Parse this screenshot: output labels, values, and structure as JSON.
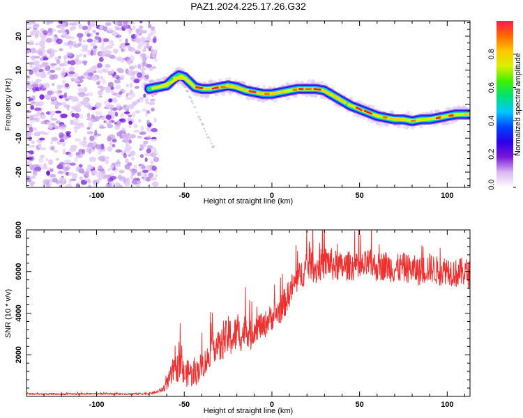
{
  "chart_data": [
    {
      "type": "heatmap",
      "title": "PAZ1.2024.225.17.26.G32",
      "xlabel": "Height of straight line (km)",
      "ylabel": "Frequency (Hz)",
      "xlim": [
        -140,
        113
      ],
      "ylim": [
        -24.5,
        24.5
      ],
      "xticks": [
        "-100",
        "-50",
        "0",
        "50",
        "100"
      ],
      "yticks": [
        "-20",
        "-10",
        "0",
        "10",
        "20"
      ],
      "noise_region_x": [
        -140,
        -68
      ],
      "ridge": {
        "x": [
          -70,
          -65,
          -60,
          -56,
          -53,
          -50,
          -47,
          -44,
          -40,
          -35,
          -30,
          -25,
          -20,
          -15,
          -10,
          -5,
          0,
          5,
          10,
          15,
          20,
          25,
          30,
          35,
          40,
          45,
          50,
          55,
          60,
          65,
          70,
          75,
          80,
          85,
          90,
          95,
          100,
          105,
          110,
          113
        ],
        "y": [
          4.5,
          5,
          5.5,
          7.5,
          8.5,
          8,
          6.5,
          5,
          4.5,
          4.5,
          5,
          5.5,
          5,
          4,
          3.5,
          3,
          3,
          3.5,
          4,
          4.5,
          4.5,
          4.5,
          4,
          2.5,
          1,
          -0.5,
          -1.5,
          -2.5,
          -3.5,
          -4,
          -4.5,
          -4.5,
          -5,
          -4.5,
          -4.5,
          -4,
          -3.5,
          -3,
          -3,
          -3
        ]
      },
      "faint_branch": {
        "x": [
          -52,
          -47,
          -43,
          -38,
          -33
        ],
        "y": [
          7,
          2.5,
          -2,
          -8,
          -13
        ]
      },
      "colorbar": {
        "label": "Normalized spectral amplitude",
        "range": [
          0.0,
          1.0
        ],
        "ticks": [
          "0.0",
          "0.2",
          "0.4",
          "0.6",
          "0.8"
        ],
        "colors": [
          "#ffffff",
          "#d9b8f0",
          "#7a18d8",
          "#2a00e8",
          "#0044ff",
          "#00c8ff",
          "#00e07a",
          "#3df000",
          "#d8f000",
          "#ffc800",
          "#ff6a00",
          "#ff1a50"
        ]
      }
    },
    {
      "type": "line",
      "xlabel": "Height of straight line (km)",
      "ylabel": "SNR (10 * v/v)",
      "xlim": [
        -140,
        113
      ],
      "ylim": [
        0,
        8000
      ],
      "xticks": [
        "-100",
        "-50",
        "0",
        "50",
        "100"
      ],
      "yticks": [
        "2000",
        "4000",
        "6000",
        "8000"
      ],
      "series": [
        {
          "color": "#ee3030",
          "x": [
            -140,
            -120,
            -100,
            -80,
            -70,
            -66,
            -62,
            -60,
            -58,
            -55,
            -52,
            -50,
            -47,
            -45,
            -42,
            -40,
            -37,
            -35,
            -32,
            -30,
            -27,
            -25,
            -22,
            -20,
            -17,
            -15,
            -12,
            -10,
            -7,
            -5,
            -2,
            0,
            3,
            5,
            8,
            10,
            12,
            15,
            17,
            20,
            22,
            25,
            27,
            30,
            32,
            35,
            40,
            45,
            50,
            55,
            60,
            65,
            70,
            75,
            80,
            85,
            90,
            95,
            100,
            105,
            110,
            113
          ],
          "y": [
            120,
            110,
            130,
            120,
            140,
            200,
            350,
            600,
            900,
            1300,
            1500,
            1000,
            1200,
            900,
            1300,
            1500,
            1700,
            2200,
            2500,
            2300,
            2700,
            2900,
            2800,
            3100,
            2900,
            3300,
            2900,
            3300,
            3400,
            3300,
            3700,
            3800,
            4000,
            4200,
            4600,
            5000,
            5300,
            5700,
            5900,
            6200,
            6400,
            6100,
            6300,
            6400,
            6500,
            6300,
            6200,
            6300,
            6100,
            6400,
            6200,
            6300,
            6100,
            6200,
            6100,
            6000,
            6200,
            6000,
            6100,
            5900,
            6000,
            5800
          ],
          "noise_amplitude": [
            60,
            60,
            60,
            60,
            80,
            100,
            200,
            400,
            700,
            900,
            1100,
            900,
            900,
            800,
            900,
            900,
            1000,
            1000,
            1100,
            1100,
            1200,
            1400,
            1300,
            1200,
            1100,
            1100,
            1000,
            1000,
            900,
            900,
            900,
            900,
            900,
            1000,
            1000,
            1000,
            1000,
            1000,
            1000,
            1100,
            1100,
            1100,
            1100,
            1100,
            1100,
            1100,
            1000,
            1000,
            1000,
            1000,
            1000,
            1000,
            1000,
            1000,
            1000,
            1000,
            1000,
            1000,
            1000,
            1000,
            1000,
            1000
          ]
        }
      ]
    }
  ]
}
